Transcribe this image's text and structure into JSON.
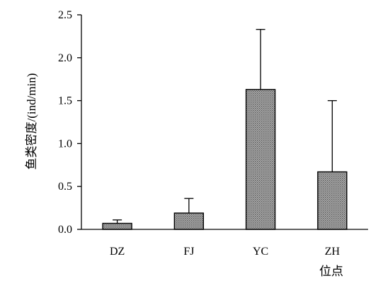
{
  "chart_data": {
    "type": "bar",
    "categories": [
      "DZ",
      "FJ",
      "YC",
      "ZH"
    ],
    "values": [
      0.07,
      0.19,
      1.63,
      0.67
    ],
    "error_upper": [
      0.11,
      0.36,
      2.33,
      1.5
    ],
    "title": "",
    "xlabel": "位点",
    "ylabel": "鱼类密度/(ind/min)",
    "ylim": [
      0,
      2.5
    ],
    "yticks": [
      "0.0",
      "0.5",
      "1.0",
      "1.5",
      "2.0",
      "2.5"
    ],
    "ytick_values": [
      0,
      0.5,
      1.0,
      1.5,
      2.0,
      2.5
    ],
    "grid": false,
    "legend": "none",
    "bar_fill": "#a0a0a0",
    "bar_pattern": "dotted-gray",
    "bar_edge": "#000000"
  }
}
